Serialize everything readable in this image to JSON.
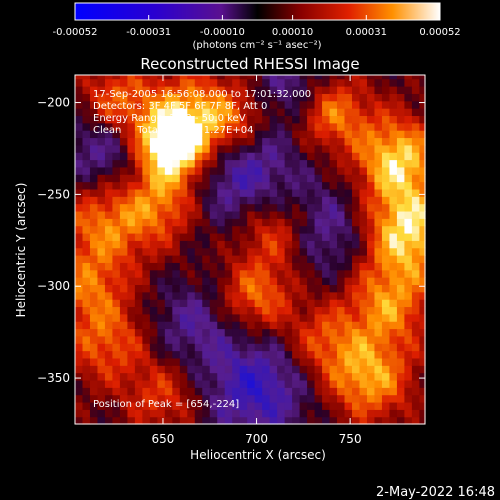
{
  "colorbar": {
    "tick_values": [
      -0.00052,
      -0.00031,
      -0.0001,
      0.0001,
      0.00031,
      0.00052
    ],
    "tick_labels": [
      "-0.00052",
      "-0.00031",
      "-0.00010",
      "0.00010",
      "0.00031",
      "0.00052"
    ],
    "units_label": "(photons cm⁻² s⁻¹ asec⁻²)",
    "range": [
      -0.00052,
      0.00052
    ]
  },
  "chart_data": {
    "type": "heatmap",
    "title": "Reconstructed RHESSI Image",
    "xlabel": "Heliocentric X (arcsec)",
    "ylabel": "Heliocentric Y (arcsec)",
    "xlim": [
      603,
      790
    ],
    "ylim": [
      -375,
      -185
    ],
    "x_ticks": [
      650,
      700,
      750
    ],
    "y_ticks": [
      -200,
      -250,
      -300,
      -350
    ],
    "x_tick_labels": [
      "650",
      "700",
      "750"
    ],
    "y_tick_labels": [
      "−200",
      "−250",
      "−300",
      "−350"
    ],
    "annotations": [
      "17-Sep-2005 16:56:08.000 to 17:01:32.000",
      "Detectors: 3F 4F 5F 6F 7F 8F, Att 0",
      "Energy Range: 25.0 - 50.0 keV",
      "Clean     Total counts: 1.27E+04"
    ],
    "peak_label": "Position of Peak = [654,-224]",
    "peak": [
      654,
      -224
    ]
  },
  "footer": {
    "timestamp": "2-May-2022 16:48"
  },
  "colors": {
    "background": "#000000",
    "text": "#ffffff"
  }
}
